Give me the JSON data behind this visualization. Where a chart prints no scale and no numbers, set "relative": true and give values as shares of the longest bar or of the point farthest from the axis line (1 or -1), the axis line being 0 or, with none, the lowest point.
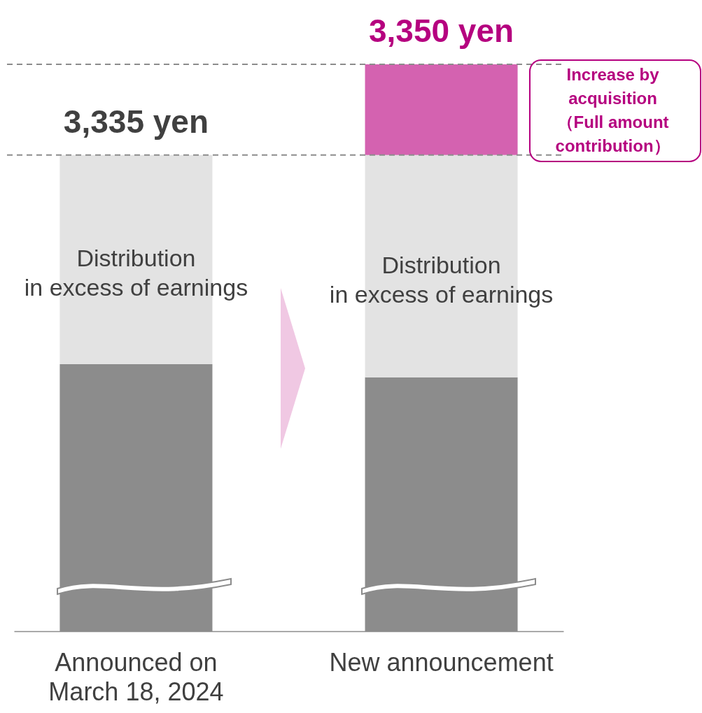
{
  "chart_data": {
    "type": "bar",
    "stacked": true,
    "relative": true,
    "legend": false,
    "categories": [
      "Announced on\nMarch 18, 2024",
      "New announcement"
    ],
    "series": [
      {
        "color": "#8c8c8c",
        "values": [
          0.471,
          0.448
        ]
      },
      {
        "name": "Distribution\nin excess of earnings",
        "color": "#e3e3e3",
        "values": [
          0.369,
          0.392
        ]
      },
      {
        "name": "Increase by\nacquisition\n（Full amount\ncontribution）",
        "color": "#d462b0",
        "values": [
          null,
          0.16
        ]
      }
    ],
    "annotations": [
      {
        "text": "3,335 yen",
        "x": "Announced on\nMarch 18, 2024",
        "y": 0.84
      },
      {
        "text": "3,350 yen",
        "x": "New announcement",
        "y": 1
      }
    ],
    "ref_lines": [
      {
        "axis": "y",
        "value": 0.84,
        "line_style": "dashed",
        "color": "#8c8c8c"
      },
      {
        "axis": "y",
        "value": 1,
        "line_style": "dashed",
        "color": "#8c8c8c"
      }
    ]
  }
}
